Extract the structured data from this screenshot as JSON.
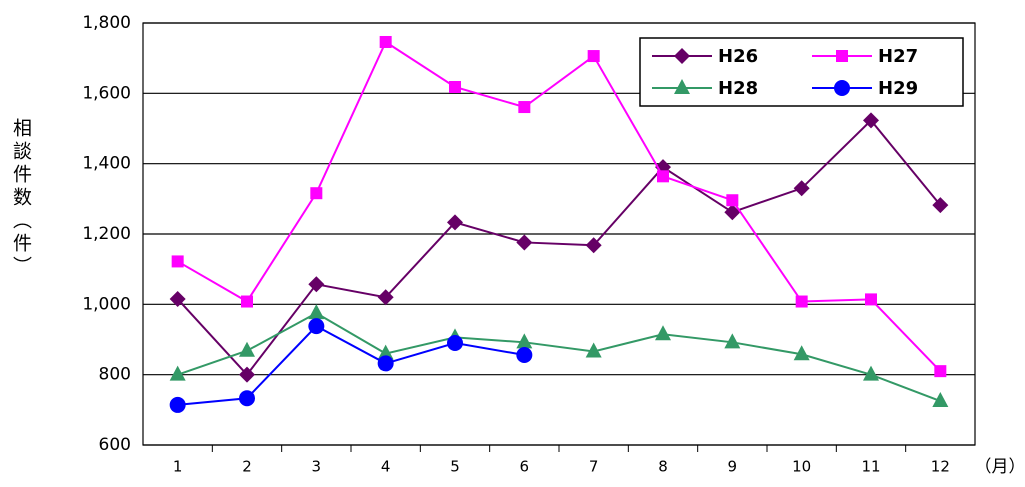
{
  "chart_data": {
    "type": "line",
    "y_label": "相談件数（件）",
    "x_unit": "（月）",
    "categories": [
      "1",
      "2",
      "3",
      "4",
      "5",
      "6",
      "7",
      "8",
      "9",
      "10",
      "11",
      "12"
    ],
    "series": [
      {
        "name": "H26",
        "color": "#660066",
        "marker": "diamond",
        "values": [
          1015,
          800,
          1057,
          1020,
          1233,
          1176,
          1168,
          1390,
          1262,
          1330,
          1523,
          1282
        ]
      },
      {
        "name": "H27",
        "color": "#ff00ff",
        "marker": "square",
        "values": [
          1122,
          1008,
          1316,
          1746,
          1618,
          1561,
          1706,
          1364,
          1296,
          1008,
          1014,
          810
        ]
      },
      {
        "name": "H28",
        "color": "#339966",
        "marker": "triangle",
        "values": [
          800,
          868,
          975,
          860,
          906,
          892,
          866,
          915,
          892,
          858,
          800,
          725
        ]
      },
      {
        "name": "H29",
        "color": "#0000ff",
        "marker": "circle",
        "values": [
          714,
          733,
          938,
          832,
          890,
          856,
          null,
          null,
          null,
          null,
          null,
          null
        ]
      }
    ],
    "ylim": [
      600,
      1800
    ],
    "yticks": [
      {
        "value": 600,
        "label": "600"
      },
      {
        "value": 800,
        "label": "800"
      },
      {
        "value": 1000,
        "label": "1,000"
      },
      {
        "value": 1200,
        "label": "1,200"
      },
      {
        "value": 1400,
        "label": "1,400"
      },
      {
        "value": 1600,
        "label": "1,600"
      },
      {
        "value": 1800,
        "label": "1,800"
      }
    ],
    "grid": true,
    "legend": "top-right"
  }
}
